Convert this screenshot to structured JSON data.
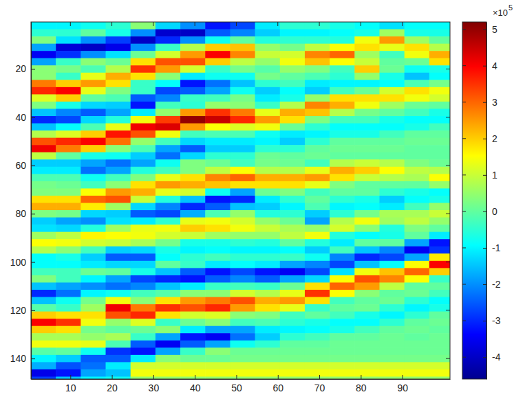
{
  "chart_data": {
    "type": "heatmap",
    "xlim": [
      0.5,
      101.5
    ],
    "ylim": [
      0.5,
      148.5
    ],
    "xticks": [
      10,
      20,
      30,
      40,
      50,
      60,
      70,
      80,
      90
    ],
    "yticks": [
      20,
      40,
      60,
      80,
      100,
      120,
      140
    ],
    "clim": [
      -4.6,
      5.2
    ],
    "cticks": [
      -4,
      -3,
      -2,
      -1,
      0,
      1,
      2,
      3,
      4,
      5
    ],
    "color_multiplier": "×10",
    "color_exponent": "5",
    "y": [
      2,
      5,
      8,
      11,
      14,
      17,
      20,
      23,
      26,
      29,
      32,
      35,
      38,
      41,
      44,
      47,
      50,
      53,
      56,
      59,
      62,
      65,
      68,
      71,
      74,
      77,
      80,
      83,
      86,
      89,
      92,
      95,
      98,
      101,
      104,
      107,
      110,
      113,
      116,
      119,
      122,
      125,
      128,
      131,
      134,
      137,
      140,
      143,
      146,
      149
    ],
    "columns": [
      {
        "x": 3.5,
        "values": [
          -1.0,
          -0.5,
          0.3,
          -1.8,
          -3.5,
          -1.8,
          0.4,
          0.4,
          2.8,
          3.6,
          1.2,
          0.3,
          -1.5,
          -3.0,
          -1.5,
          0.8,
          3.2,
          4.1,
          0.9,
          -1.4,
          -1.1,
          -0.2,
          0.2,
          0.3,
          1.8,
          2.3,
          0.3,
          -1.4,
          -1.2,
          0.6,
          1.5,
          0.8,
          -0.9,
          -0.9,
          -0.3,
          0.3,
          -1.5,
          -3.0,
          -1.5,
          -0.1,
          2.0,
          4.0,
          2.0,
          0.7,
          1.4,
          -0.1,
          -1.0,
          -1.7,
          -3.6,
          -2.8
        ]
      },
      {
        "x": 9.5,
        "values": [
          -1.0,
          -0.5,
          -1.2,
          -3.8,
          -2.9,
          -0.4,
          0.2,
          -0.4,
          2.0,
          4.0,
          2.0,
          -0.7,
          -2.1,
          -2.7,
          -0.9,
          1.2,
          3.6,
          2.8,
          0.0,
          -1.4,
          -1.1,
          -0.2,
          0.1,
          0.3,
          1.8,
          2.3,
          0.2,
          -1.8,
          -1.3,
          0.9,
          1.4,
          0.4,
          -0.7,
          -0.9,
          -0.3,
          -0.3,
          -1.8,
          -2.3,
          -0.8,
          -0.4,
          1.8,
          3.5,
          1.8,
          0.7,
          1.4,
          0.0,
          -1.4,
          -2.6,
          -3.2,
          -1.5
        ]
      },
      {
        "x": 15.5,
        "values": [
          -0.8,
          0.0,
          -2.0,
          -4.0,
          -2.0,
          0.4,
          -0.2,
          1.3,
          2.5,
          1.3,
          0.0,
          -1.3,
          -2.5,
          -1.3,
          -0.2,
          2.0,
          4.0,
          2.0,
          -0.7,
          -1.8,
          -2.3,
          -0.8,
          -0.3,
          1.5,
          3.0,
          1.7,
          -1.3,
          -2.0,
          -0.6,
          1.6,
          1.1,
          -0.3,
          -1.4,
          -1.1,
          0.1,
          -1.0,
          -2.0,
          -1.0,
          0.2,
          0.6,
          1.8,
          1.4,
          0.2,
          0.5,
          1.3,
          -0.8,
          -2.5,
          -2.3,
          -1.8,
          -1.0
        ]
      },
      {
        "x": 21.5,
        "values": [
          -0.5,
          -0.7,
          -2.8,
          -3.6,
          -1.2,
          0.1,
          0.8,
          2.3,
          1.8,
          0.3,
          -0.2,
          -1.4,
          -1.8,
          -0.6,
          1.3,
          3.8,
          2.9,
          0.4,
          -0.8,
          -2.3,
          -1.8,
          -0.3,
          0.4,
          2.5,
          3.2,
          0.6,
          -1.4,
          -1.2,
          0.6,
          1.5,
          1.0,
          -1.4,
          -2.5,
          -1.3,
          0.0,
          -1.8,
          -2.3,
          -0.8,
          1.4,
          4.1,
          3.2,
          0.5,
          0.0,
          0.7,
          -0.2,
          -2.9,
          -2.5,
          -1.1,
          -1.5,
          -0.8
        ]
      },
      {
        "x": 27.5,
        "values": [
          0.4,
          -2.0,
          -4.0,
          -2.0,
          0.1,
          1.8,
          3.5,
          1.8,
          -0.4,
          -0.4,
          -2.5,
          -3.2,
          -1.1,
          1.4,
          4.1,
          3.2,
          0.5,
          -0.2,
          -1.4,
          -1.8,
          -0.6,
          0.3,
          1.8,
          2.3,
          1.0,
          -1.3,
          -2.5,
          -1.1,
          1.3,
          1.4,
          0.7,
          -1.3,
          -2.5,
          -1.3,
          -0.7,
          -2.7,
          -2.1,
          -0.3,
          0.4,
          2.8,
          3.6,
          1.2,
          0.1,
          -0.4,
          -2.5,
          -3.2,
          -1.1,
          1.1,
          1.4,
          0.5
        ]
      },
      {
        "x": 33.5,
        "values": [
          -1.3,
          -3.9,
          -3.0,
          -0.4,
          1.1,
          3.2,
          2.5,
          0.4,
          -0.9,
          -2.7,
          -2.1,
          -0.3,
          0.5,
          3.4,
          4.3,
          1.4,
          -0.3,
          -1.8,
          -2.3,
          -0.8,
          -0.3,
          1.3,
          2.5,
          1.3,
          -0.6,
          -2.1,
          -2.7,
          -0.5,
          1.4,
          1.1,
          0.2,
          -0.7,
          -0.9,
          0.0,
          -1.5,
          -3.0,
          -1.5,
          -0.1,
          1.8,
          3.5,
          1.8,
          -0.4,
          0.4,
          -1.8,
          -3.5,
          -1.8,
          0.4,
          1.1,
          1.4,
          0.5
        ]
      },
      {
        "x": 39.5,
        "values": [
          -2.0,
          -4.0,
          -2.0,
          0.8,
          2.5,
          3.2,
          1.1,
          -1.1,
          -3.2,
          -2.5,
          -0.4,
          -0.5,
          2.5,
          5.0,
          2.5,
          -0.3,
          -1.3,
          -2.5,
          -1.3,
          0.3,
          0.3,
          1.8,
          2.3,
          1.1,
          -1.5,
          -3.0,
          -1.7,
          1.3,
          2.0,
          1.0,
          -0.7,
          -1.0,
          -0.5,
          -0.4,
          -2.5,
          -3.2,
          -1.1,
          0.4,
          2.5,
          3.2,
          1.1,
          0.1,
          -1.1,
          -3.2,
          -2.5,
          -0.4,
          0.1,
          1.1,
          1.4,
          0.5
        ]
      },
      {
        "x": 45.5,
        "values": [
          -3.2,
          -2.5,
          -0.8,
          2.0,
          4.0,
          2.0,
          -0.4,
          -0.8,
          -2.3,
          -1.8,
          -0.3,
          0.5,
          3.5,
          4.5,
          1.5,
          -0.2,
          -1.1,
          -1.4,
          -0.5,
          0.1,
          0.9,
          2.7,
          2.1,
          -0.8,
          -3.2,
          -2.5,
          -0.2,
          1.4,
          1.8,
          0.6,
          -0.7,
          -0.9,
          -0.3,
          -1.1,
          -3.2,
          -2.5,
          -0.4,
          0.4,
          2.8,
          3.6,
          1.2,
          0.4,
          -1.8,
          -3.5,
          -1.8,
          0.4,
          0.1,
          1.1,
          1.4,
          0.5
        ]
      },
      {
        "x": 51.5,
        "values": [
          -2.7,
          -2.1,
          0.0,
          2.1,
          2.7,
          0.9,
          0.2,
          -0.8,
          -1.5,
          -0.8,
          0.2,
          0.4,
          2.8,
          3.6,
          1.2,
          -0.2,
          -1.1,
          -1.4,
          -0.5,
          -0.3,
          1.5,
          3.0,
          1.8,
          -1.8,
          -3.0,
          -1.5,
          0.5,
          1.1,
          1.4,
          0.5,
          -0.5,
          -1.0,
          -0.5,
          -0.9,
          -2.7,
          -2.1,
          -0.3,
          1.1,
          3.2,
          2.5,
          0.4,
          -0.3,
          -1.8,
          -2.3,
          -0.8,
          0.1,
          0.2,
          1.1,
          1.4,
          0.5
        ]
      },
      {
        "x": 57.5,
        "values": [
          -1.1,
          -1.4,
          -0.6,
          0.5,
          1.0,
          0.5,
          -0.1,
          0.2,
          -0.5,
          -1.4,
          -1.1,
          -0.4,
          1.3,
          2.5,
          1.4,
          -0.8,
          -1.0,
          -0.5,
          0.1,
          0.2,
          0.8,
          2.3,
          1.8,
          0.1,
          -1.1,
          -1.4,
          -0.6,
          0.5,
          1.0,
          0.5,
          -0.6,
          -1.0,
          -0.5,
          -1.1,
          -3.2,
          -2.5,
          -0.4,
          0.8,
          2.3,
          1.8,
          0.3,
          -0.2,
          -1.1,
          -1.4,
          -0.5,
          0.1,
          0.2,
          1.1,
          1.4,
          0.5
        ]
      },
      {
        "x": 63.5,
        "values": [
          -0.5,
          -1.0,
          -0.5,
          0.2,
          1.1,
          1.4,
          0.5,
          0.0,
          -0.3,
          -0.9,
          -0.7,
          0.8,
          2.3,
          1.8,
          0.1,
          -1.1,
          -1.4,
          -0.5,
          0.0,
          0.1,
          0.8,
          2.3,
          1.8,
          0.3,
          -0.5,
          -1.0,
          -0.5,
          0.1,
          0.7,
          0.9,
          0.0,
          -0.9,
          -0.4,
          -1.8,
          -3.5,
          -1.8,
          0.1,
          1.3,
          2.5,
          1.3,
          -0.3,
          -0.5,
          -1.0,
          -0.5,
          0.0,
          0.1,
          0.2,
          1.1,
          1.4,
          0.5
        ]
      },
      {
        "x": 69.5,
        "values": [
          -0.5,
          -1.0,
          -0.5,
          0.9,
          2.7,
          2.1,
          0.3,
          -0.2,
          -1.1,
          -1.4,
          0.5,
          2.7,
          2.1,
          0.3,
          -0.5,
          -1.0,
          -0.5,
          0.0,
          0.1,
          -0.3,
          1.3,
          2.5,
          1.3,
          -0.3,
          0.0,
          -0.2,
          -1.4,
          -1.8,
          0.5,
          1.4,
          -0.6,
          -1.4,
          -0.8,
          -2.1,
          -2.7,
          -1.3,
          1.8,
          3.5,
          1.8,
          -0.4,
          0.0,
          -0.7,
          -0.9,
          -0.3,
          0.0,
          0.1,
          0.2,
          1.1,
          1.4,
          0.5
        ]
      },
      {
        "x": 75.5,
        "values": [
          -0.7,
          -0.9,
          -0.6,
          1.5,
          3.0,
          1.5,
          -0.3,
          -0.5,
          -1.0,
          -0.3,
          1.8,
          2.3,
          0.8,
          -0.3,
          -0.9,
          -0.7,
          0.0,
          0.1,
          0.0,
          0.8,
          2.3,
          1.8,
          0.3,
          0.0,
          -0.5,
          -1.0,
          -0.5,
          0.8,
          1.1,
          -0.6,
          -1.1,
          -0.3,
          -2.1,
          -2.7,
          -1.2,
          1.5,
          3.0,
          1.5,
          -0.3,
          0.0,
          -0.3,
          -0.9,
          -0.7,
          0.0,
          0.1,
          0.1,
          0.2,
          1.1,
          1.4,
          0.5
        ]
      },
      {
        "x": 81.5,
        "values": [
          -0.9,
          -0.7,
          1.4,
          1.8,
          0.6,
          1.0,
          2.0,
          0.5,
          -1.0,
          0.1,
          1.8,
          1.4,
          0.2,
          -0.3,
          -0.9,
          -0.7,
          0.0,
          0.1,
          0.0,
          1.0,
          2.0,
          1.0,
          0.0,
          0.0,
          -0.7,
          -0.9,
          0.2,
          1.4,
          0.4,
          -0.9,
          0.0,
          -1.5,
          -3.0,
          -1.5,
          1.4,
          3.2,
          2.5,
          0.4,
          0.0,
          0.1,
          -0.7,
          -0.9,
          -0.3,
          0.0,
          0.1,
          0.1,
          0.2,
          1.1,
          1.4,
          0.5
        ]
      },
      {
        "x": 87.5,
        "values": [
          -1.2,
          0.6,
          2.5,
          1.3,
          -0.3,
          0.0,
          0.1,
          -0.7,
          -0.9,
          1.1,
          1.8,
          0.6,
          0.0,
          -0.7,
          -0.9,
          -0.3,
          0.0,
          0.1,
          0.0,
          0.8,
          1.5,
          0.8,
          0.0,
          -0.5,
          -1.4,
          -1.1,
          0.7,
          0.6,
          -0.6,
          -0.7,
          0.0,
          -2.1,
          -2.7,
          -0.9,
          2.1,
          2.7,
          0.9,
          0.0,
          0.1,
          -0.5,
          -1.0,
          -0.5,
          0.0,
          0.1,
          0.1,
          0.1,
          0.2,
          1.1,
          1.4,
          0.5
        ]
      },
      {
        "x": 93.5,
        "values": [
          -0.9,
          -0.7,
          0.6,
          1.8,
          1.4,
          0.1,
          -0.8,
          -1.5,
          -0.2,
          1.8,
          1.4,
          0.1,
          -0.3,
          -0.9,
          -0.7,
          0.0,
          0.1,
          0.0,
          0.0,
          0.3,
          0.9,
          0.7,
          0.0,
          -0.7,
          -0.9,
          -0.3,
          0.7,
          0.9,
          0.3,
          0.0,
          -1.8,
          -3.5,
          -1.8,
          1.5,
          3.0,
          1.5,
          0.0,
          0.1,
          -0.5,
          -1.0,
          -0.5,
          0.0,
          0.1,
          0.0,
          0.1,
          0.1,
          0.2,
          1.1,
          1.4,
          0.5
        ]
      },
      {
        "x": 99.5,
        "values": [
          -0.9,
          -0.7,
          0.0,
          0.8,
          2.3,
          1.8,
          -0.7,
          -0.9,
          0.2,
          1.4,
          1.1,
          0.0,
          -0.7,
          -0.9,
          -0.3,
          0.0,
          0.1,
          0.0,
          0.0,
          0.1,
          0.8,
          1.5,
          0.5,
          -0.9,
          -0.7,
          0.5,
          1.0,
          0.5,
          0.0,
          -1.1,
          -3.2,
          -2.9,
          1.7,
          4.0,
          2.0,
          -0.4,
          0.0,
          -0.3,
          -0.9,
          -0.7,
          0.0,
          0.1,
          0.0,
          0.1,
          0.1,
          0.1,
          0.2,
          1.1,
          1.4,
          0.5
        ]
      }
    ]
  }
}
